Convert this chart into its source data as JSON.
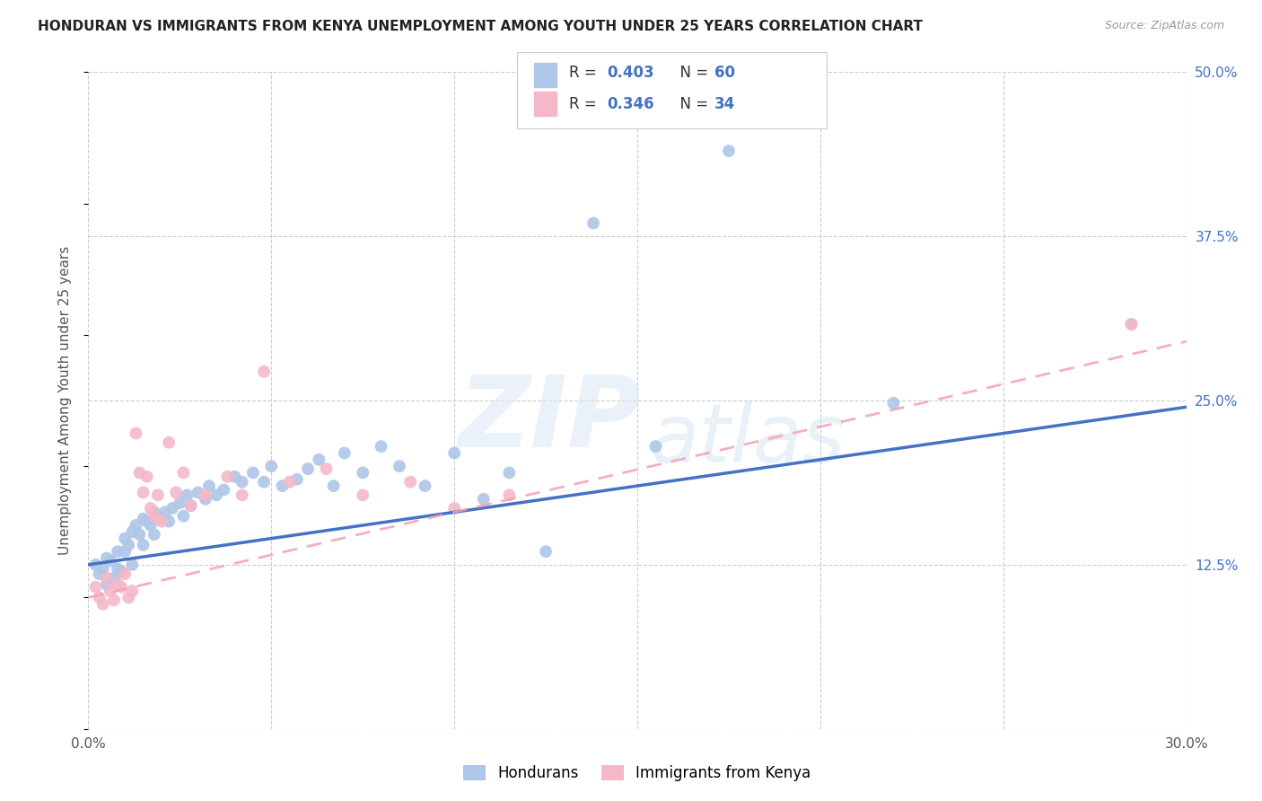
{
  "title": "HONDURAN VS IMMIGRANTS FROM KENYA UNEMPLOYMENT AMONG YOUTH UNDER 25 YEARS CORRELATION CHART",
  "source": "Source: ZipAtlas.com",
  "ylabel": "Unemployment Among Youth under 25 years",
  "xlim": [
    0.0,
    0.3
  ],
  "ylim": [
    0.0,
    0.5
  ],
  "xticks": [
    0.0,
    0.05,
    0.1,
    0.15,
    0.2,
    0.25,
    0.3
  ],
  "xticklabels": [
    "0.0%",
    "",
    "",
    "",
    "",
    "",
    "30.0%"
  ],
  "yticks_right": [
    0.0,
    0.125,
    0.25,
    0.375,
    0.5
  ],
  "yticklabels_right": [
    "",
    "12.5%",
    "25.0%",
    "37.5%",
    "50.0%"
  ],
  "background_color": "#ffffff",
  "grid_color": "#cccccc",
  "hondurans_color": "#aec6e8",
  "kenya_color": "#f4b8c8",
  "hondurans_line_color": "#4472c4",
  "kenya_line_color": "#f4a0b4",
  "legend_R1": "0.403",
  "legend_N1": "60",
  "legend_R2": "0.346",
  "legend_N2": "34",
  "hondurans_x": [
    0.002,
    0.003,
    0.004,
    0.005,
    0.005,
    0.006,
    0.007,
    0.008,
    0.008,
    0.009,
    0.01,
    0.01,
    0.011,
    0.012,
    0.012,
    0.013,
    0.014,
    0.015,
    0.015,
    0.016,
    0.017,
    0.018,
    0.018,
    0.02,
    0.021,
    0.022,
    0.023,
    0.025,
    0.026,
    0.027,
    0.028,
    0.03,
    0.032,
    0.033,
    0.035,
    0.037,
    0.04,
    0.042,
    0.045,
    0.048,
    0.05,
    0.053,
    0.057,
    0.06,
    0.063,
    0.067,
    0.07,
    0.075,
    0.08,
    0.085,
    0.092,
    0.1,
    0.108,
    0.115,
    0.125,
    0.138,
    0.155,
    0.175,
    0.22,
    0.285
  ],
  "hondurans_y": [
    0.125,
    0.118,
    0.122,
    0.13,
    0.11,
    0.128,
    0.115,
    0.122,
    0.135,
    0.12,
    0.145,
    0.135,
    0.14,
    0.15,
    0.125,
    0.155,
    0.148,
    0.16,
    0.14,
    0.158,
    0.155,
    0.148,
    0.165,
    0.16,
    0.165,
    0.158,
    0.168,
    0.172,
    0.162,
    0.178,
    0.17,
    0.18,
    0.175,
    0.185,
    0.178,
    0.182,
    0.192,
    0.188,
    0.195,
    0.188,
    0.2,
    0.185,
    0.19,
    0.198,
    0.205,
    0.185,
    0.21,
    0.195,
    0.215,
    0.2,
    0.185,
    0.21,
    0.175,
    0.195,
    0.135,
    0.385,
    0.215,
    0.44,
    0.248,
    0.308
  ],
  "kenya_x": [
    0.002,
    0.003,
    0.004,
    0.005,
    0.006,
    0.007,
    0.008,
    0.009,
    0.01,
    0.011,
    0.012,
    0.013,
    0.014,
    0.015,
    0.016,
    0.017,
    0.018,
    0.019,
    0.02,
    0.022,
    0.024,
    0.026,
    0.028,
    0.032,
    0.038,
    0.042,
    0.048,
    0.055,
    0.065,
    0.075,
    0.088,
    0.1,
    0.115,
    0.285
  ],
  "kenya_y": [
    0.108,
    0.1,
    0.095,
    0.115,
    0.105,
    0.098,
    0.11,
    0.108,
    0.118,
    0.1,
    0.105,
    0.225,
    0.195,
    0.18,
    0.192,
    0.168,
    0.162,
    0.178,
    0.158,
    0.218,
    0.18,
    0.195,
    0.17,
    0.178,
    0.192,
    0.178,
    0.272,
    0.188,
    0.198,
    0.178,
    0.188,
    0.168,
    0.178,
    0.308
  ]
}
